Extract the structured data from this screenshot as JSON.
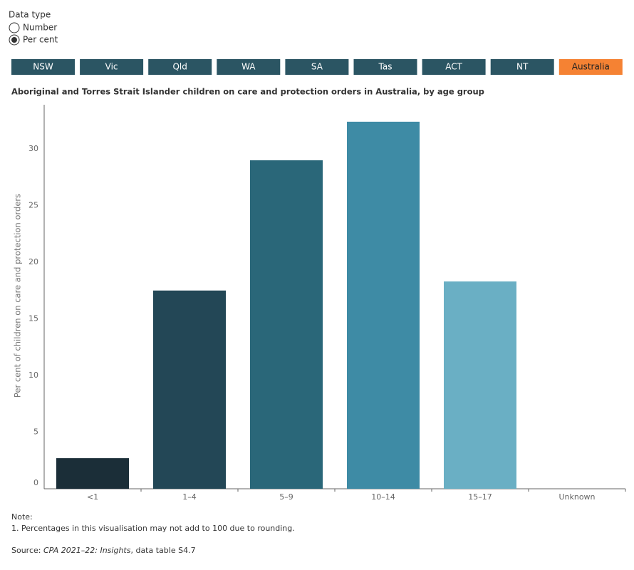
{
  "controls": {
    "data_type_label": "Data type",
    "options": [
      "Number",
      "Per cent"
    ],
    "selected": "Per cent",
    "regions": [
      "NSW",
      "Vic",
      "Qld",
      "WA",
      "SA",
      "Tas",
      "ACT",
      "NT",
      "Australia"
    ],
    "selected_region": "Australia"
  },
  "chart_data": {
    "type": "bar",
    "title": "Aboriginal and Torres Strait Islander children on care and protection orders in Australia, by age group",
    "y_label": "Per cent of children on care and protection orders",
    "categories": [
      "<1",
      "1–4",
      "5–9",
      "10–14",
      "15–17",
      "Unknown"
    ],
    "values": [
      2.7,
      17.5,
      29.0,
      32.4,
      18.3,
      0
    ],
    "colors": [
      "#1b2e38",
      "#234756",
      "#2a6779",
      "#3e8ba5",
      "#6aafc4",
      "#a9d2de"
    ],
    "ylim": [
      0,
      33.9
    ],
    "yticks": [
      0,
      5,
      10,
      15,
      20,
      25,
      30
    ]
  },
  "notes": {
    "heading": "Note:",
    "items": [
      "1.  Percentages in this visualisation may not add to 100 due to rounding."
    ],
    "source_prefix": "Source:  ",
    "source_title": "CPA 2021–22: Insights",
    "source_suffix": ", data table S4.7"
  }
}
